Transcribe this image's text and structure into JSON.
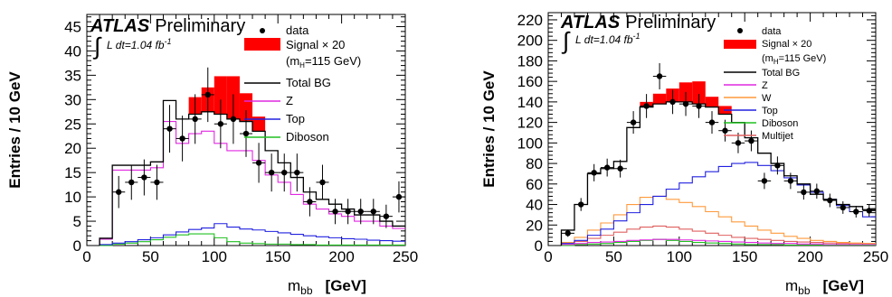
{
  "chart_data": [
    {
      "type": "histogram",
      "experiment_label": "ATLAS",
      "status_label": "Preliminary",
      "luminosity_label": "L dt=1.04 fb",
      "luminosity_exponent": "-1",
      "xlabel": "m",
      "xlabel_subscript": "bb",
      "xunit": "[GeV]",
      "ylabel": "Entries / 10 GeV",
      "xlim": [
        0,
        250
      ],
      "ylim": [
        0,
        47.5
      ],
      "xticks": [
        0,
        50,
        100,
        150,
        200,
        250
      ],
      "yticks": [
        0,
        5,
        10,
        15,
        20,
        25,
        30,
        35,
        40,
        45
      ],
      "bin_edges": [
        10,
        20,
        30,
        40,
        50,
        60,
        70,
        80,
        90,
        100,
        110,
        120,
        130,
        140,
        150,
        160,
        170,
        180,
        190,
        200,
        210,
        220,
        230,
        240,
        250
      ],
      "legend": {
        "position": "top-right",
        "data_label": "data",
        "signal_label": "Signal × 20",
        "signal_sublabel": "(m",
        "signal_sublabel_sub": "H",
        "signal_sublabel_end": "=115 GeV)",
        "entries": [
          "Total BG",
          "Z",
          "Top",
          "Diboson"
        ]
      },
      "colors": {
        "data": "#000000",
        "signal": "#ff0000",
        "total_bg": "#000000",
        "z": "#e028e0",
        "top": "#2020e0",
        "diboson": "#20c020"
      },
      "series": [
        {
          "name": "Total BG",
          "values": [
            1.5,
            16.5,
            16.5,
            16.5,
            17.2,
            29.8,
            26,
            27,
            27.5,
            27,
            26,
            25.5,
            23.5,
            19.5,
            17,
            14,
            11,
            9.5,
            8.5,
            7.5,
            6.3,
            6.3,
            5,
            4
          ]
        },
        {
          "name": "Z",
          "values": [
            1.3,
            15.5,
            15.5,
            15.5,
            16,
            25.5,
            21,
            23,
            23.5,
            21,
            19.5,
            19.5,
            17.5,
            14.5,
            13,
            10.5,
            8.5,
            7.5,
            6.5,
            6,
            5,
            5,
            4,
            3.5
          ]
        },
        {
          "name": "Top",
          "values": [
            0.2,
            0.5,
            0.8,
            1.2,
            1.6,
            2.2,
            2.8,
            3.3,
            3.6,
            4.5,
            3.8,
            3.4,
            3.2,
            2.9,
            2.6,
            2.3,
            2.0,
            1.8,
            1.6,
            1.4,
            1.3,
            1.1,
            1.0,
            0.9
          ]
        },
        {
          "name": "Diboson",
          "values": [
            0,
            0.3,
            0.5,
            0.8,
            1.2,
            1.7,
            2.2,
            2.4,
            2.4,
            1.6,
            0.8,
            0.5,
            0.4,
            0.3,
            0.3,
            0.2,
            0.2,
            0.1,
            0.1,
            0.1,
            0.1,
            0.1,
            0.1,
            0.1
          ]
        },
        {
          "name": "Signal × 20",
          "values": [
            0,
            0,
            0,
            0,
            0,
            0,
            0,
            3.5,
            5.0,
            7.8,
            8.8,
            5.8,
            3.0,
            0,
            0,
            0,
            0,
            0,
            0,
            0,
            0,
            0,
            0,
            0
          ]
        },
        {
          "name": "data",
          "x": [
            25,
            35,
            45,
            55,
            65,
            75,
            85,
            95,
            105,
            115,
            125,
            135,
            145,
            155,
            165,
            175,
            185,
            195,
            205,
            215,
            225,
            235,
            245
          ],
          "values": [
            11,
            13,
            14,
            13,
            24,
            22,
            26,
            31,
            25,
            26,
            23,
            17,
            15,
            15,
            15,
            9,
            13,
            7,
            7,
            7,
            7,
            6,
            10
          ],
          "errors": [
            3.3,
            3.6,
            3.7,
            3.6,
            4.9,
            4.7,
            5.1,
            5.6,
            5.0,
            5.1,
            4.8,
            4.1,
            3.9,
            3.9,
            3.9,
            3.0,
            3.6,
            2.6,
            2.6,
            2.6,
            2.6,
            2.4,
            3.2
          ]
        }
      ]
    },
    {
      "type": "histogram",
      "experiment_label": "ATLAS",
      "status_label": "Preliminary",
      "luminosity_label": "L dt=1.04 fb",
      "luminosity_exponent": "-1",
      "xlabel": "m",
      "xlabel_subscript": "bb",
      "xunit": "[GeV]",
      "ylabel": "Entries / 10 GeV",
      "xlim": [
        0,
        250
      ],
      "ylim": [
        0,
        227
      ],
      "xticks": [
        0,
        50,
        100,
        150,
        200,
        250
      ],
      "yticks": [
        0,
        20,
        40,
        60,
        80,
        100,
        120,
        140,
        160,
        180,
        200,
        220
      ],
      "bin_edges": [
        10,
        20,
        30,
        40,
        50,
        60,
        70,
        80,
        90,
        100,
        110,
        120,
        130,
        140,
        150,
        160,
        170,
        180,
        190,
        200,
        210,
        220,
        230,
        240,
        250
      ],
      "legend": {
        "position": "top-right",
        "data_label": "data",
        "signal_label": "Signal × 20",
        "signal_sublabel": "(m",
        "signal_sublabel_sub": "H",
        "signal_sublabel_end": "=115 GeV)",
        "entries": [
          "Total BG",
          "Z",
          "W",
          "Top",
          "Diboson",
          "Multijet"
        ]
      },
      "colors": {
        "data": "#000000",
        "signal": "#ff0000",
        "total_bg": "#000000",
        "z": "#e028e0",
        "w": "#ff9a3c",
        "top": "#2020e0",
        "diboson": "#20c020",
        "multijet": "#e06060"
      },
      "series": [
        {
          "name": "Total BG",
          "values": [
            15,
            40,
            70,
            75,
            82,
            115,
            135,
            138,
            140,
            140,
            138,
            135,
            128,
            120,
            105,
            90,
            80,
            68,
            60,
            50,
            45,
            40,
            38,
            35
          ]
        },
        {
          "name": "Z",
          "values": [
            1,
            2,
            3,
            3.5,
            4,
            5,
            5.5,
            6,
            6,
            5.5,
            5,
            4.5,
            4,
            3.5,
            3,
            2.5,
            2,
            2,
            1.5,
            1.5,
            1,
            1,
            1,
            1
          ]
        },
        {
          "name": "W",
          "values": [
            3,
            8,
            15,
            22,
            30,
            40,
            47,
            48,
            45,
            42,
            38,
            33,
            28,
            23,
            19,
            15,
            12,
            9,
            7,
            5,
            4,
            3,
            2.5,
            2
          ]
        },
        {
          "name": "Top",
          "values": [
            2,
            5,
            10,
            16,
            24,
            32,
            40,
            48,
            55,
            61,
            67,
            72,
            77,
            80,
            81,
            78,
            73,
            66,
            59,
            52,
            45,
            39,
            33,
            28
          ]
        },
        {
          "name": "Diboson",
          "values": [
            0,
            1,
            1.5,
            2,
            3,
            4,
            5,
            6,
            5,
            4,
            3,
            2.5,
            2,
            1.5,
            1,
            1,
            1,
            0.5,
            0.5,
            0.5,
            0.5,
            0.5,
            0.5,
            0.5
          ]
        },
        {
          "name": "Multijet",
          "values": [
            2,
            4,
            7,
            10,
            13,
            16,
            18,
            19,
            18,
            16,
            14,
            12,
            10,
            8,
            7,
            6,
            5,
            4,
            3.5,
            3,
            2.5,
            2,
            2,
            2
          ]
        },
        {
          "name": "Signal × 20",
          "values": [
            0,
            0,
            0,
            0,
            0,
            0,
            5,
            10,
            13,
            19,
            22,
            10,
            8,
            0,
            0,
            0,
            0,
            0,
            0,
            0,
            0,
            0,
            0,
            0
          ]
        },
        {
          "name": "data",
          "x": [
            15,
            25,
            35,
            45,
            55,
            65,
            75,
            85,
            95,
            105,
            115,
            125,
            135,
            145,
            155,
            165,
            175,
            185,
            195,
            205,
            215,
            225,
            235,
            245
          ],
          "values": [
            12,
            40,
            71,
            76,
            75,
            120,
            136,
            165,
            140,
            138,
            136,
            120,
            112,
            100,
            102,
            63,
            78,
            63,
            52,
            53,
            44,
            37,
            33,
            34
          ],
          "errors": [
            3.5,
            6.3,
            8.4,
            8.7,
            8.7,
            11,
            11.7,
            12.8,
            11.8,
            11.7,
            11.7,
            11,
            10.6,
            10,
            10.1,
            7.9,
            8.8,
            7.9,
            7.2,
            7.3,
            6.6,
            6.1,
            5.7,
            5.8
          ]
        }
      ]
    }
  ]
}
